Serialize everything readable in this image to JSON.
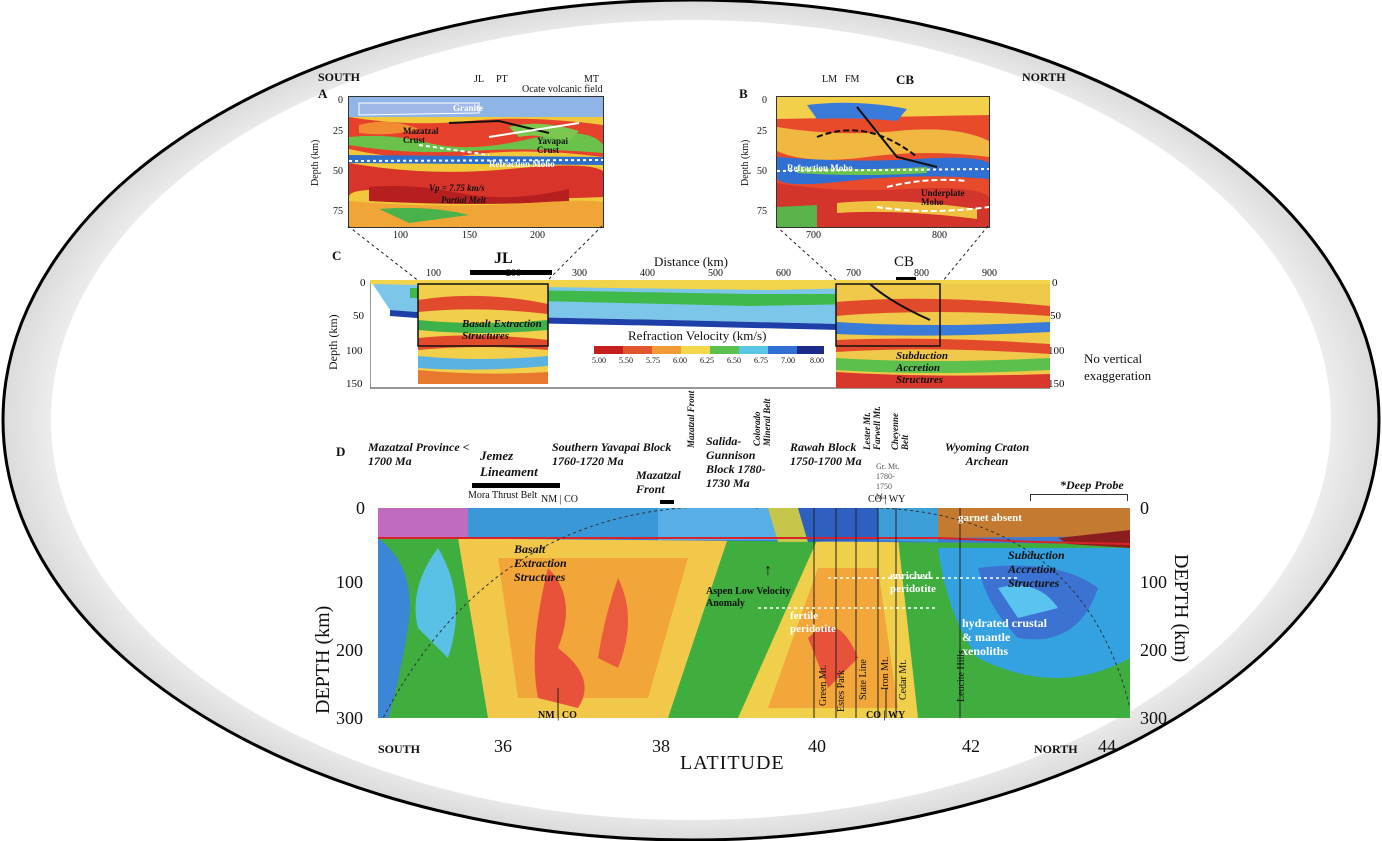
{
  "compass": {
    "south_top": "SOUTH",
    "north_top": "NORTH",
    "south_bottom": "SOUTH",
    "north_bottom": "NORTH"
  },
  "panel_a": {
    "letter": "A",
    "top_labels": [
      "JL",
      "PT",
      "MT"
    ],
    "field_label": "Ocate volcanic field",
    "ylabel": "Depth (km)",
    "yticks": [
      "0",
      "25",
      "50",
      "75"
    ],
    "xticks": [
      "100",
      "150",
      "200"
    ],
    "annotations": {
      "granite": "Granite",
      "mazatzal": "Mazatzal Crust",
      "yavapai": "Yavapai Crust",
      "moho": "Refraction Moho",
      "partial": "Partial Melt",
      "vp": "Vp = 7.75 km/s"
    }
  },
  "panel_b": {
    "letter": "B",
    "top_labels": [
      "LM",
      "FM",
      "CB"
    ],
    "ylabel": "Depth (km)",
    "yticks": [
      "0",
      "25",
      "50",
      "75"
    ],
    "xticks": [
      "700",
      "800"
    ],
    "annotations": {
      "moho": "Refraction Moho",
      "underplate": "Underplate Moho"
    }
  },
  "panel_c": {
    "letter": "C",
    "bars": [
      "JL",
      "CB"
    ],
    "xlabel": "Distance (km)",
    "xticks": [
      "100",
      "200",
      "300",
      "400",
      "500",
      "600",
      "700",
      "800",
      "900"
    ],
    "ylabel": "Depth (km)",
    "yticks": [
      "0",
      "50",
      "100",
      "150"
    ],
    "annotations": {
      "basalt": "Basalt Extraction Structures",
      "subduction": "Subduction Accretion Structures"
    },
    "colorbar_title": "Refraction Velocity (km/s)",
    "colorbar_ticks": [
      "5.00",
      "5.50",
      "5.75",
      "6.00",
      "6.25",
      "6.50",
      "6.75",
      "7.00",
      "8.00"
    ],
    "note": "No vertical exaggeration"
  },
  "panel_d": {
    "letter": "D",
    "provinces": {
      "mazatzal": "Mazatzal Province < 1700 Ma",
      "jemez": "Jemez Lineament",
      "syb": "Southern Yavapai Block 1760-1720 Ma",
      "mazatzal_front": "Mazatzal Front",
      "mazatzal_front_v": "Mazatzal Front",
      "salida": "Salida-Gunnison Block 1780-1730 Ma",
      "colorado_belt": "Colorado Mineral Belt",
      "rawah": "Rawah Block 1750-1700 Ma",
      "laramie": "Lester Mt. Farwell Mt.",
      "cheyenne": "Cheyenne Belt",
      "wyoming": "Wyoming Craton Archean",
      "grmt": "Gr. Mt. 1780-1750 Ma",
      "deep_probe": "*Deep Probe"
    },
    "states": {
      "nm_co": "NM | CO",
      "co_wy": "CO | WY",
      "nm_co_bottom": "NM | CO",
      "co_wy_bottom": "CO | WY",
      "mora": "Mora Thrust Belt"
    },
    "annotations": {
      "basalt": "Basalt Extraction Structures",
      "aspen": "Aspen Low Velocity Anomaly",
      "fertile": "fertile peridotite",
      "enriched": "enriched peridotite",
      "garnet": "garnet absent",
      "subduction": "Subduction Accretion Structures",
      "hydrated": "hydrated crustal & mantle xenoliths"
    },
    "kimberlites": [
      "Green Mt.",
      "Estes Park",
      "State Line",
      "Iron Mt.",
      "Cedar Mt.",
      "Leucite Hills"
    ],
    "ylabel_left": "DEPTH (km)",
    "ylabel_right": "DEPTH (km)",
    "yticks": [
      "0",
      "100",
      "200",
      "300"
    ],
    "xticks": [
      "36",
      "38",
      "40",
      "42",
      "44"
    ],
    "xlabel": "LATITUDE"
  },
  "colors": {
    "mantle_green": "#3aa63a",
    "hot_red": "#e8402c",
    "cool_blue": "#2f76d6",
    "yellow": "#f2d54a"
  }
}
